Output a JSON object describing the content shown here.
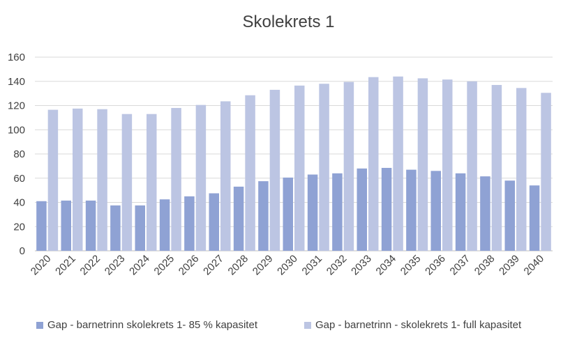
{
  "chart_data": {
    "type": "bar",
    "title": "Skolekrets 1",
    "xlabel": "",
    "ylabel": "",
    "ylim": [
      0,
      160
    ],
    "yticks": [
      0,
      20,
      40,
      60,
      80,
      100,
      120,
      140,
      160
    ],
    "grid": true,
    "legend_position": "bottom",
    "categories": [
      "2020",
      "2021",
      "2022",
      "2023",
      "2024",
      "2025",
      "2026",
      "2027",
      "2028",
      "2029",
      "2030",
      "2031",
      "2032",
      "2033",
      "2034",
      "2035",
      "2036",
      "2037",
      "2038",
      "2039",
      "2040"
    ],
    "series": [
      {
        "name": "Gap - barnetrinn skolekrets 1- 85 % kapasitet",
        "color": "#8FA2D4",
        "values": [
          41,
          41.5,
          41.5,
          37.5,
          37.5,
          42.5,
          45,
          47.5,
          53,
          57.5,
          60.5,
          63,
          64,
          68,
          68.5,
          67,
          66,
          64,
          61.5,
          58,
          54
        ]
      },
      {
        "name": "Gap - barnetrinn - skolekrets 1- full kapasitet",
        "color": "#BCC5E3",
        "values": [
          116.5,
          117.5,
          117,
          113,
          113,
          118,
          120.5,
          123.5,
          128.5,
          133,
          136.5,
          138,
          139.5,
          143.5,
          144,
          142.5,
          141.5,
          140,
          137,
          134.5,
          130.5
        ]
      }
    ]
  },
  "colors": {
    "grid": "#d9d9d9",
    "axis": "#bfbfbf",
    "text": "#404040"
  }
}
